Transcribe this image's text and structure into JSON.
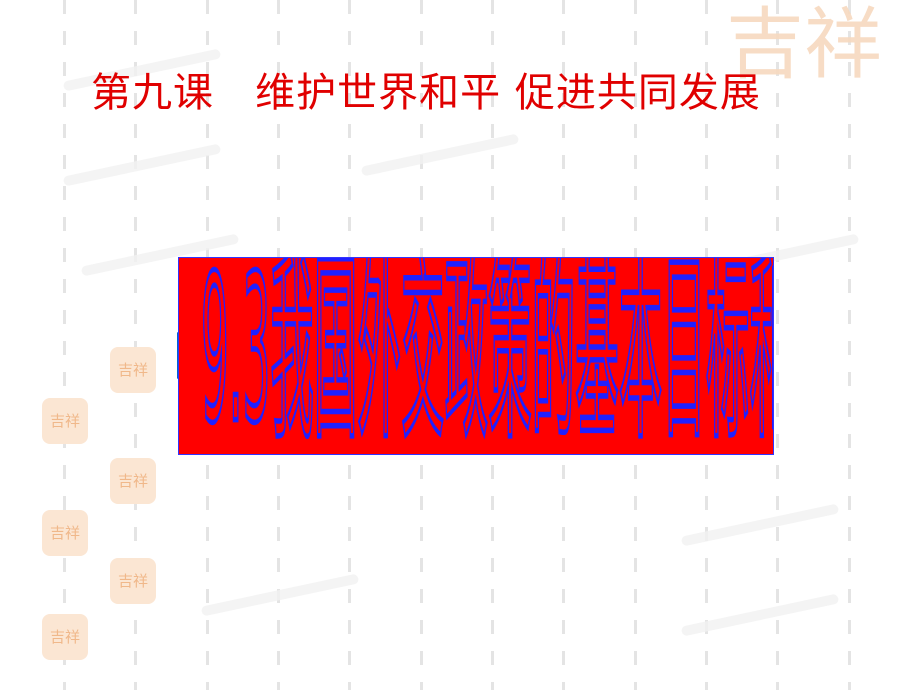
{
  "slide": {
    "title": "第九课   维护世界和平 促进共同发展",
    "banner_text": "9.3我国外交政策的基本目标和宗",
    "colors": {
      "title": "#e00000",
      "banner_fill": "#ff0000",
      "banner_text_outline": "#2020ff",
      "tab": "#0066cc",
      "seal": "#f0b88a"
    },
    "decoration": {
      "seal_lettering": "吉祥"
    }
  }
}
